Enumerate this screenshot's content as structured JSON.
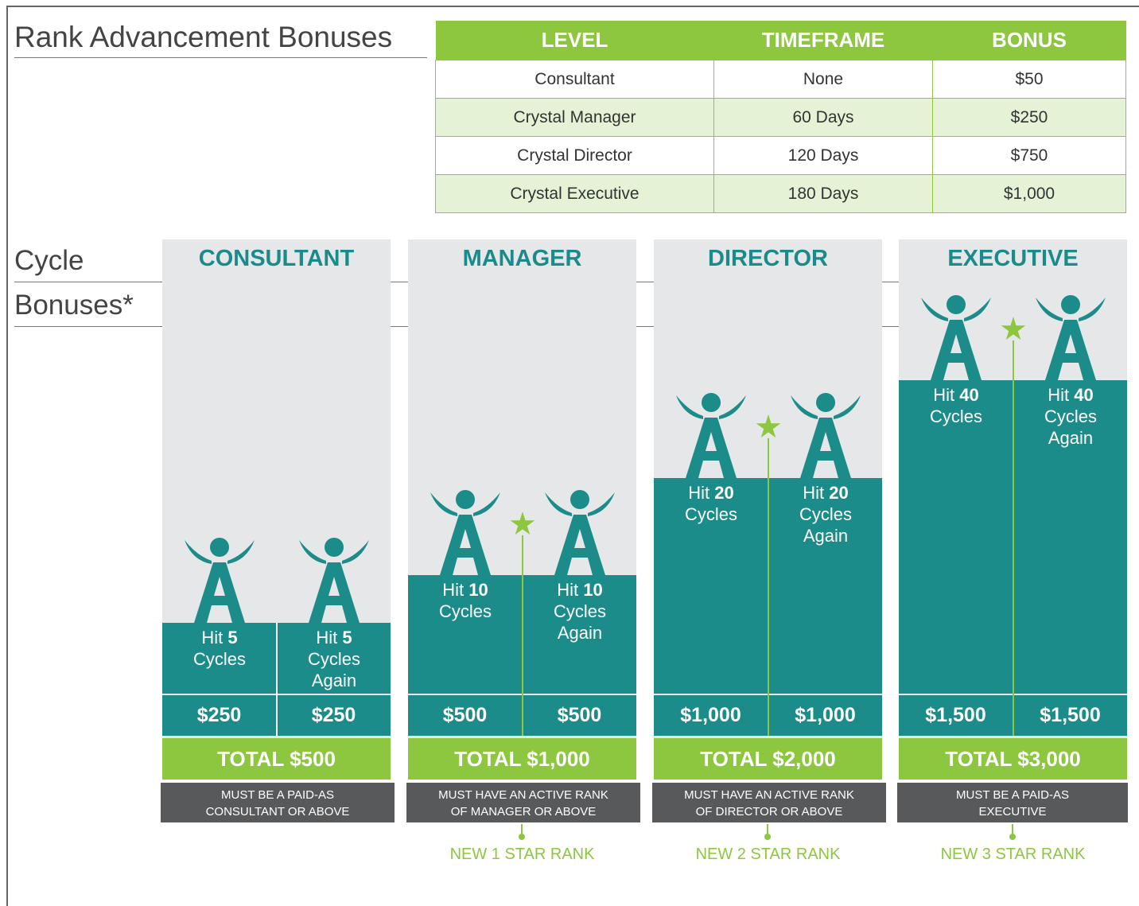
{
  "title": "Rank Advancement Bonuses",
  "table": {
    "headers": [
      "LEVEL",
      "TIMEFRAME",
      "BONUS"
    ],
    "rows": [
      [
        "Consultant",
        "None",
        "$50"
      ],
      [
        "Crystal Manager",
        "60 Days",
        "$250"
      ],
      [
        "Crystal Director",
        "120 Days",
        "$750"
      ],
      [
        "Crystal Executive",
        "180 Days",
        "$1,000"
      ]
    ]
  },
  "cycle_title": [
    "Cycle",
    "Bonuses*"
  ],
  "columns": [
    {
      "title": "CONSULTANT",
      "halves": [
        {
          "hit": "Hit",
          "count": "5",
          "lines": [
            "Cycles"
          ],
          "amount": "$250"
        },
        {
          "hit": "Hit",
          "count": "5",
          "lines": [
            "Cycles",
            "Again"
          ],
          "amount": "$250"
        }
      ],
      "total": "TOTAL $500",
      "requirement": [
        "MUST BE A PAID-AS",
        "CONSULTANT OR ABOVE"
      ]
    },
    {
      "title": "MANAGER",
      "halves": [
        {
          "hit": "Hit",
          "count": "10",
          "lines": [
            "Cycles"
          ],
          "amount": "$500"
        },
        {
          "hit": "Hit",
          "count": "10",
          "lines": [
            "Cycles",
            "Again"
          ],
          "amount": "$500"
        }
      ],
      "total": "TOTAL $1,000",
      "requirement": [
        "MUST HAVE AN ACTIVE RANK",
        "OF MANAGER OR ABOVE"
      ],
      "star_label": "NEW 1 STAR RANK"
    },
    {
      "title": "DIRECTOR",
      "halves": [
        {
          "hit": "Hit",
          "count": "20",
          "lines": [
            "Cycles"
          ],
          "amount": "$1,000"
        },
        {
          "hit": "Hit",
          "count": "20",
          "lines": [
            "Cycles",
            "Again"
          ],
          "amount": "$1,000"
        }
      ],
      "total": "TOTAL $2,000",
      "requirement": [
        "MUST HAVE AN ACTIVE RANK",
        "OF DIRECTOR OR ABOVE"
      ],
      "star_label": "NEW 2 STAR RANK"
    },
    {
      "title": "EXECUTIVE",
      "halves": [
        {
          "hit": "Hit",
          "count": "40",
          "lines": [
            "Cycles"
          ],
          "amount": "$1,500"
        },
        {
          "hit": "Hit",
          "count": "40",
          "lines": [
            "Cycles",
            "Again"
          ],
          "amount": "$1,500"
        }
      ],
      "total": "TOTAL $3,000",
      "requirement": [
        "MUST BE A PAID-AS",
        "EXECUTIVE"
      ],
      "star_label": "NEW 3 STAR RANK"
    }
  ]
}
